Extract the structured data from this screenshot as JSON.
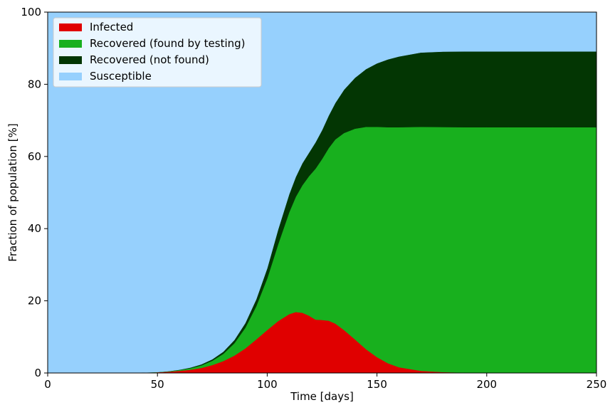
{
  "chart_data": {
    "type": "area",
    "stacked": true,
    "title": "",
    "xlabel": "Time [days]",
    "ylabel": "Fraction of population [%]",
    "xlim": [
      0,
      250
    ],
    "ylim": [
      0,
      100
    ],
    "xticks": [
      "0",
      "50",
      "100",
      "150",
      "200",
      "250"
    ],
    "yticks": [
      "0",
      "20",
      "40",
      "60",
      "80",
      "100"
    ],
    "grid": false,
    "legend_position": "top-left",
    "x": [
      0,
      40,
      50,
      55,
      60,
      65,
      70,
      75,
      80,
      85,
      90,
      95,
      100,
      105,
      110,
      113,
      116,
      119,
      122,
      125,
      128,
      131,
      135,
      140,
      145,
      150,
      155,
      160,
      170,
      180,
      190,
      200,
      210,
      220,
      230,
      240,
      250
    ],
    "series": [
      {
        "name": "Infected",
        "color": "#e00000",
        "values": [
          0,
          0.05,
          0.2,
          0.35,
          0.6,
          0.9,
          1.4,
          2.2,
          3.3,
          4.8,
          6.8,
          9.3,
          11.9,
          14.4,
          16.3,
          16.9,
          16.7,
          15.9,
          14.8,
          14.7,
          14.5,
          13.7,
          11.9,
          9.3,
          6.6,
          4.4,
          2.7,
          1.6,
          0.6,
          0.25,
          0.1,
          0.05,
          0.02,
          0.01,
          0,
          0,
          0
        ]
      },
      {
        "name": "Recovered (found by testing)",
        "color": "#18b01e",
        "values": [
          0,
          0,
          0.05,
          0.1,
          0.2,
          0.4,
          0.7,
          1.2,
          2.0,
          3.4,
          5.7,
          9.2,
          14.3,
          21.3,
          28.2,
          31.9,
          35.3,
          38.6,
          41.8,
          44.6,
          47.8,
          51.0,
          54.6,
          58.4,
          61.6,
          63.8,
          65.4,
          66.5,
          67.6,
          67.9,
          68.0,
          68.05,
          68.08,
          68.09,
          68.1,
          68.1,
          68.1
        ]
      },
      {
        "name": "Recovered (not found)",
        "color": "#033603",
        "values": [
          0,
          0,
          0,
          0.05,
          0.1,
          0.2,
          0.3,
          0.4,
          0.6,
          0.9,
          1.3,
          1.9,
          2.8,
          4.1,
          5.0,
          5.5,
          6.1,
          6.5,
          7.3,
          8.0,
          9.0,
          10.1,
          12.0,
          14.1,
          16.0,
          17.6,
          18.8,
          19.6,
          20.6,
          20.9,
          21.0,
          21.0,
          21.0,
          21.0,
          21.0,
          21.0,
          21.0
        ]
      },
      {
        "name": "Susceptible",
        "color": "#96d0fd",
        "values": [
          100,
          99.95,
          99.75,
          99.5,
          99.1,
          98.5,
          97.6,
          96.2,
          94.1,
          90.9,
          86.2,
          79.6,
          71.0,
          60.2,
          50.5,
          45.7,
          41.9,
          39.0,
          36.1,
          32.7,
          28.7,
          25.2,
          21.5,
          18.2,
          15.8,
          14.2,
          13.1,
          12.3,
          11.2,
          10.95,
          10.9,
          10.9,
          10.9,
          10.9,
          10.9,
          10.9,
          10.9
        ]
      }
    ]
  }
}
